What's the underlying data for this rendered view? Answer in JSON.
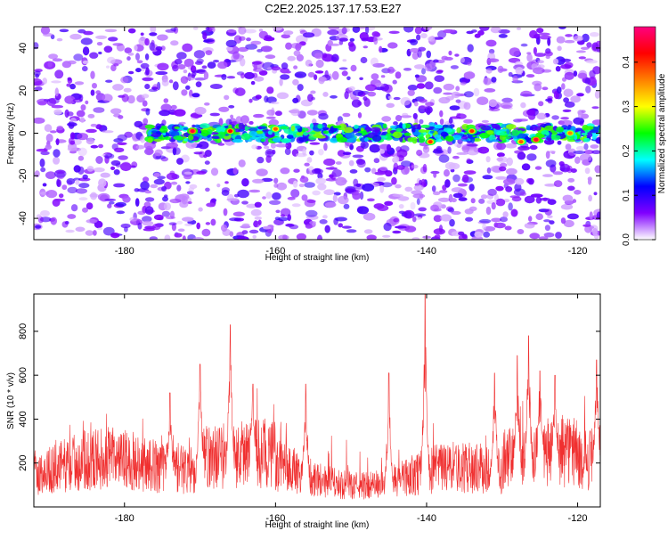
{
  "title": "C2E2.2025.137.17.53.E27",
  "chart_data": [
    {
      "type": "heatmap",
      "xlabel": "Height of straight line (km)",
      "ylabel": "Frequency (Hz)",
      "xlim": [
        -192,
        -117
      ],
      "ylim": [
        -50,
        50
      ],
      "x_ticks": [
        -180,
        -160,
        -140,
        -120
      ],
      "y_ticks": [
        -40,
        -20,
        0,
        20,
        40
      ],
      "colorbar": {
        "label": "Normalized spectral amplitude",
        "range": [
          0,
          0.48
        ],
        "ticks": [
          0.0,
          0.1,
          0.2,
          0.3,
          0.4
        ],
        "colors": [
          "#ffffff",
          "#8000ff",
          "#0000ff",
          "#00ffff",
          "#00ff00",
          "#ffff00",
          "#ff8000",
          "#ff0000",
          "#ff0080"
        ]
      },
      "background_level": 0.06,
      "signal_band": {
        "frequency_center": 0,
        "frequency_halfwidth": 3,
        "x_start": -177,
        "x_end": -117,
        "level": 0.22
      },
      "hotspots": [
        {
          "x": -171,
          "y": 1,
          "value": 0.45
        },
        {
          "x": -166,
          "y": 1,
          "value": 0.42
        },
        {
          "x": -160,
          "y": 2,
          "value": 0.38
        },
        {
          "x": -139.5,
          "y": -4,
          "value": 0.4
        },
        {
          "x": -134,
          "y": 1,
          "value": 0.4
        },
        {
          "x": -127.5,
          "y": -4,
          "value": 0.38
        },
        {
          "x": -125.5,
          "y": -3,
          "value": 0.45
        },
        {
          "x": -121,
          "y": 0,
          "value": 0.36
        }
      ]
    },
    {
      "type": "line",
      "xlabel": "Height of straight line (km)",
      "ylabel": "SNR (10 * v/v)",
      "xlim": [
        -192,
        -117
      ],
      "ylim": [
        0,
        970
      ],
      "x_ticks": [
        -180,
        -160,
        -140,
        -120
      ],
      "y_ticks": [
        200,
        400,
        600,
        800
      ],
      "series_color": "#f03030",
      "baseline": 165,
      "spikes": [
        {
          "x": -174,
          "value": 520
        },
        {
          "x": -170,
          "value": 650
        },
        {
          "x": -166,
          "value": 830
        },
        {
          "x": -163,
          "value": 560
        },
        {
          "x": -156,
          "value": 560
        },
        {
          "x": -145,
          "value": 610
        },
        {
          "x": -140.2,
          "value": 970
        },
        {
          "x": -131,
          "value": 610
        },
        {
          "x": -128,
          "value": 690
        },
        {
          "x": -126.5,
          "value": 780
        },
        {
          "x": -125,
          "value": 620
        },
        {
          "x": -123,
          "value": 600
        },
        {
          "x": -117.5,
          "value": 670
        }
      ]
    }
  ]
}
